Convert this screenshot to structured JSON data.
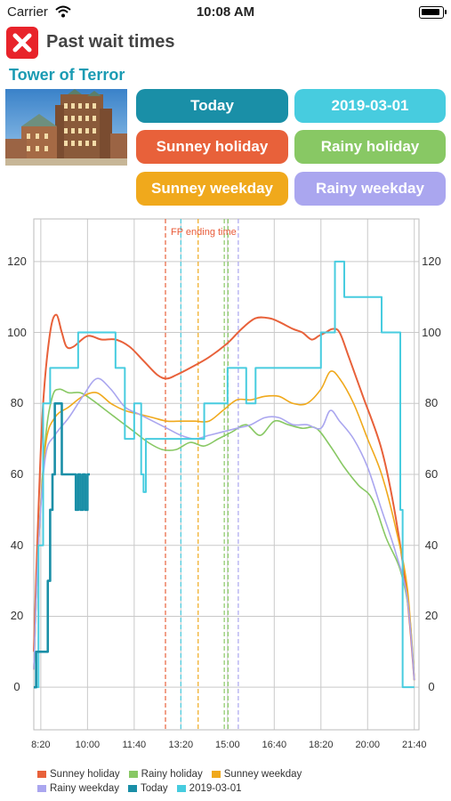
{
  "status": {
    "carrier": "Carrier",
    "time": "10:08 AM"
  },
  "header": {
    "title": "Past wait times",
    "attraction": "Tower of Terror"
  },
  "buttons": [
    {
      "key": "today",
      "label": "Today",
      "color": "#1a8fa7"
    },
    {
      "key": "date",
      "label": "2019-03-01",
      "color": "#47ccdf"
    },
    {
      "key": "sunney_holiday",
      "label": "Sunney holiday",
      "color": "#e8613a"
    },
    {
      "key": "rainy_holiday",
      "label": "Rainy holiday",
      "color": "#88c864"
    },
    {
      "key": "sunney_weekday",
      "label": "Sunney weekday",
      "color": "#f0a91c"
    },
    {
      "key": "rainy_weekday",
      "label": "Rainy weekday",
      "color": "#aaa6ef"
    }
  ],
  "chart_data": {
    "type": "line",
    "fp_label": "FP ending time",
    "ylim": [
      -12,
      132
    ],
    "y_ticks": [
      0,
      20,
      40,
      60,
      80,
      100,
      120
    ],
    "x_ticks": [
      "8:20",
      "10:00",
      "11:40",
      "13:20",
      "15:00",
      "16:40",
      "18:20",
      "20:00",
      "21:40"
    ],
    "x_tick_minutes": [
      500,
      600,
      700,
      800,
      900,
      1000,
      1100,
      1200,
      1300
    ],
    "xlim": [
      485,
      1310
    ],
    "grid": true,
    "legend": "bottom",
    "fp_lines": [
      {
        "minute": 767,
        "color": "#e8613a"
      },
      {
        "minute": 800,
        "color": "#47ccdf"
      },
      {
        "minute": 837,
        "color": "#f0a91c"
      },
      {
        "minute": 893,
        "color": "#88c864"
      },
      {
        "minute": 901,
        "color": "#88c864"
      },
      {
        "minute": 923,
        "color": "#aaa6ef"
      }
    ],
    "series": [
      {
        "name": "Sunney holiday",
        "color": "#e8613a",
        "width": 2,
        "x": [
          485,
          495,
          505,
          520,
          533,
          545,
          555,
          570,
          600,
          630,
          660,
          690,
          720,
          750,
          770,
          790,
          820,
          860,
          900,
          930,
          960,
          990,
          1010,
          1040,
          1060,
          1080,
          1095,
          1110,
          1125,
          1140,
          1160,
          1190,
          1230,
          1260,
          1285,
          1300
        ],
        "y": [
          10,
          50,
          80,
          100,
          105,
          100,
          96,
          96,
          99,
          98,
          98,
          96,
          92,
          88,
          87,
          88,
          90,
          93,
          97,
          101,
          104,
          104,
          103,
          101,
          100,
          98,
          99,
          100,
          101,
          100,
          93,
          82,
          67,
          48,
          25,
          2
        ]
      },
      {
        "name": "Rainy holiday",
        "color": "#88c864",
        "width": 1.6,
        "x": [
          485,
          495,
          510,
          525,
          540,
          560,
          585,
          610,
          640,
          670,
          700,
          730,
          760,
          790,
          820,
          850,
          880,
          910,
          940,
          970,
          1000,
          1030,
          1060,
          1090,
          1120,
          1150,
          1180,
          1210,
          1240,
          1270,
          1290,
          1300
        ],
        "y": [
          5,
          40,
          70,
          82,
          84,
          83,
          83,
          81,
          78,
          75,
          72,
          69,
          67,
          67,
          69,
          68,
          70,
          72,
          74,
          71,
          75,
          74,
          73,
          73,
          68,
          62,
          57,
          53,
          42,
          33,
          20,
          2
        ]
      },
      {
        "name": "Sunney weekday",
        "color": "#f0a91c",
        "width": 1.6,
        "x": [
          485,
          495,
          510,
          530,
          560,
          590,
          620,
          650,
          680,
          710,
          740,
          770,
          800,
          830,
          860,
          890,
          920,
          950,
          980,
          1010,
          1040,
          1070,
          1100,
          1120,
          1140,
          1170,
          1200,
          1230,
          1260,
          1285,
          1300
        ],
        "y": [
          5,
          40,
          68,
          76,
          79,
          82,
          83,
          80,
          78,
          77,
          76,
          75,
          75,
          75,
          75,
          78,
          81,
          81,
          82,
          82,
          80,
          80,
          84,
          89,
          87,
          80,
          70,
          60,
          45,
          28,
          2
        ]
      },
      {
        "name": "Rainy weekday",
        "color": "#aaa6ef",
        "width": 1.6,
        "x": [
          485,
          495,
          510,
          530,
          560,
          590,
          620,
          650,
          680,
          710,
          740,
          770,
          800,
          830,
          860,
          890,
          920,
          950,
          980,
          1010,
          1040,
          1070,
          1100,
          1120,
          1140,
          1170,
          1200,
          1230,
          1260,
          1285,
          1300
        ],
        "y": [
          5,
          40,
          65,
          71,
          76,
          82,
          87,
          84,
          79,
          77,
          75,
          73,
          71,
          70,
          71,
          72,
          73,
          74,
          76,
          76,
          74,
          74,
          73,
          78,
          75,
          70,
          62,
          50,
          38,
          25,
          2
        ]
      },
      {
        "name": "Today",
        "color": "#1a8fa7",
        "width": 2.6,
        "step": true,
        "x": [
          485,
          490,
          500,
          510,
          515,
          520,
          525,
          530,
          535,
          540,
          545,
          550,
          560,
          570,
          575,
          580,
          585,
          590,
          595,
          600,
          605
        ],
        "y": [
          0,
          10,
          10,
          10,
          30,
          50,
          60,
          80,
          80,
          80,
          60,
          60,
          60,
          60,
          50,
          60,
          50,
          60,
          50,
          60,
          60
        ]
      },
      {
        "name": "2019-03-01",
        "color": "#47ccdf",
        "width": 2,
        "step": true,
        "x": [
          485,
          495,
          505,
          520,
          535,
          560,
          580,
          600,
          620,
          640,
          660,
          680,
          700,
          715,
          720,
          725,
          730,
          760,
          790,
          820,
          850,
          870,
          900,
          910,
          940,
          960,
          1000,
          1040,
          1080,
          1100,
          1110,
          1130,
          1150,
          1170,
          1200,
          1230,
          1260,
          1270,
          1275,
          1290,
          1300
        ],
        "y": [
          0,
          40,
          80,
          90,
          90,
          90,
          100,
          100,
          100,
          100,
          90,
          70,
          80,
          60,
          55,
          70,
          70,
          70,
          70,
          70,
          80,
          80,
          90,
          90,
          80,
          90,
          90,
          90,
          90,
          100,
          100,
          120,
          110,
          110,
          110,
          100,
          100,
          50,
          0,
          0,
          0
        ]
      }
    ]
  }
}
